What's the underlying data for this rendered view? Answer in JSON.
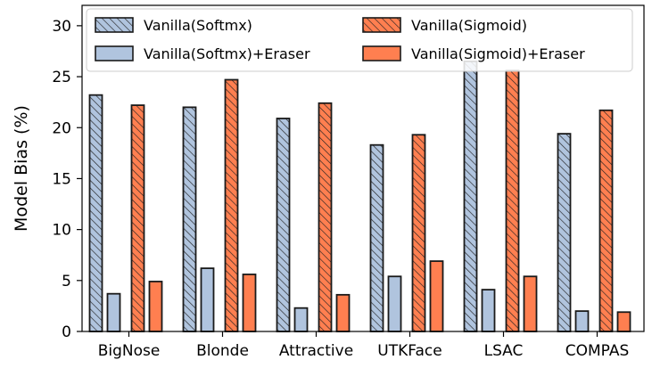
{
  "chart_data": {
    "type": "bar",
    "title": "",
    "xlabel": "",
    "ylabel": "Model Bias (%)",
    "ylim": [
      0,
      32
    ],
    "yticks": [
      0,
      5,
      10,
      15,
      20,
      25,
      30
    ],
    "categories": [
      "BigNose",
      "Blonde",
      "Attractive",
      "UTKFace",
      "LSAC",
      "COMPAS"
    ],
    "series": [
      {
        "name": "Vanilla(Softmx)",
        "color": "#b0c4de",
        "hatch": true,
        "values": [
          23.2,
          22.0,
          20.9,
          18.3,
          26.5,
          19.4
        ]
      },
      {
        "name": "Vanilla(Softmx)+Eraser",
        "color": "#b0c4de",
        "hatch": false,
        "values": [
          3.7,
          6.2,
          2.3,
          5.4,
          4.1,
          2.0
        ]
      },
      {
        "name": "Vanilla(Sigmoid)",
        "color": "#ff7f50",
        "hatch": true,
        "values": [
          22.2,
          24.7,
          22.4,
          19.3,
          25.6,
          21.7
        ]
      },
      {
        "name": "Vanilla(Sigmoid)+Eraser",
        "color": "#ff7f50",
        "hatch": false,
        "values": [
          4.9,
          5.6,
          3.6,
          6.9,
          5.4,
          1.9
        ]
      }
    ],
    "legend": {
      "location": "top",
      "columns": 2
    }
  }
}
